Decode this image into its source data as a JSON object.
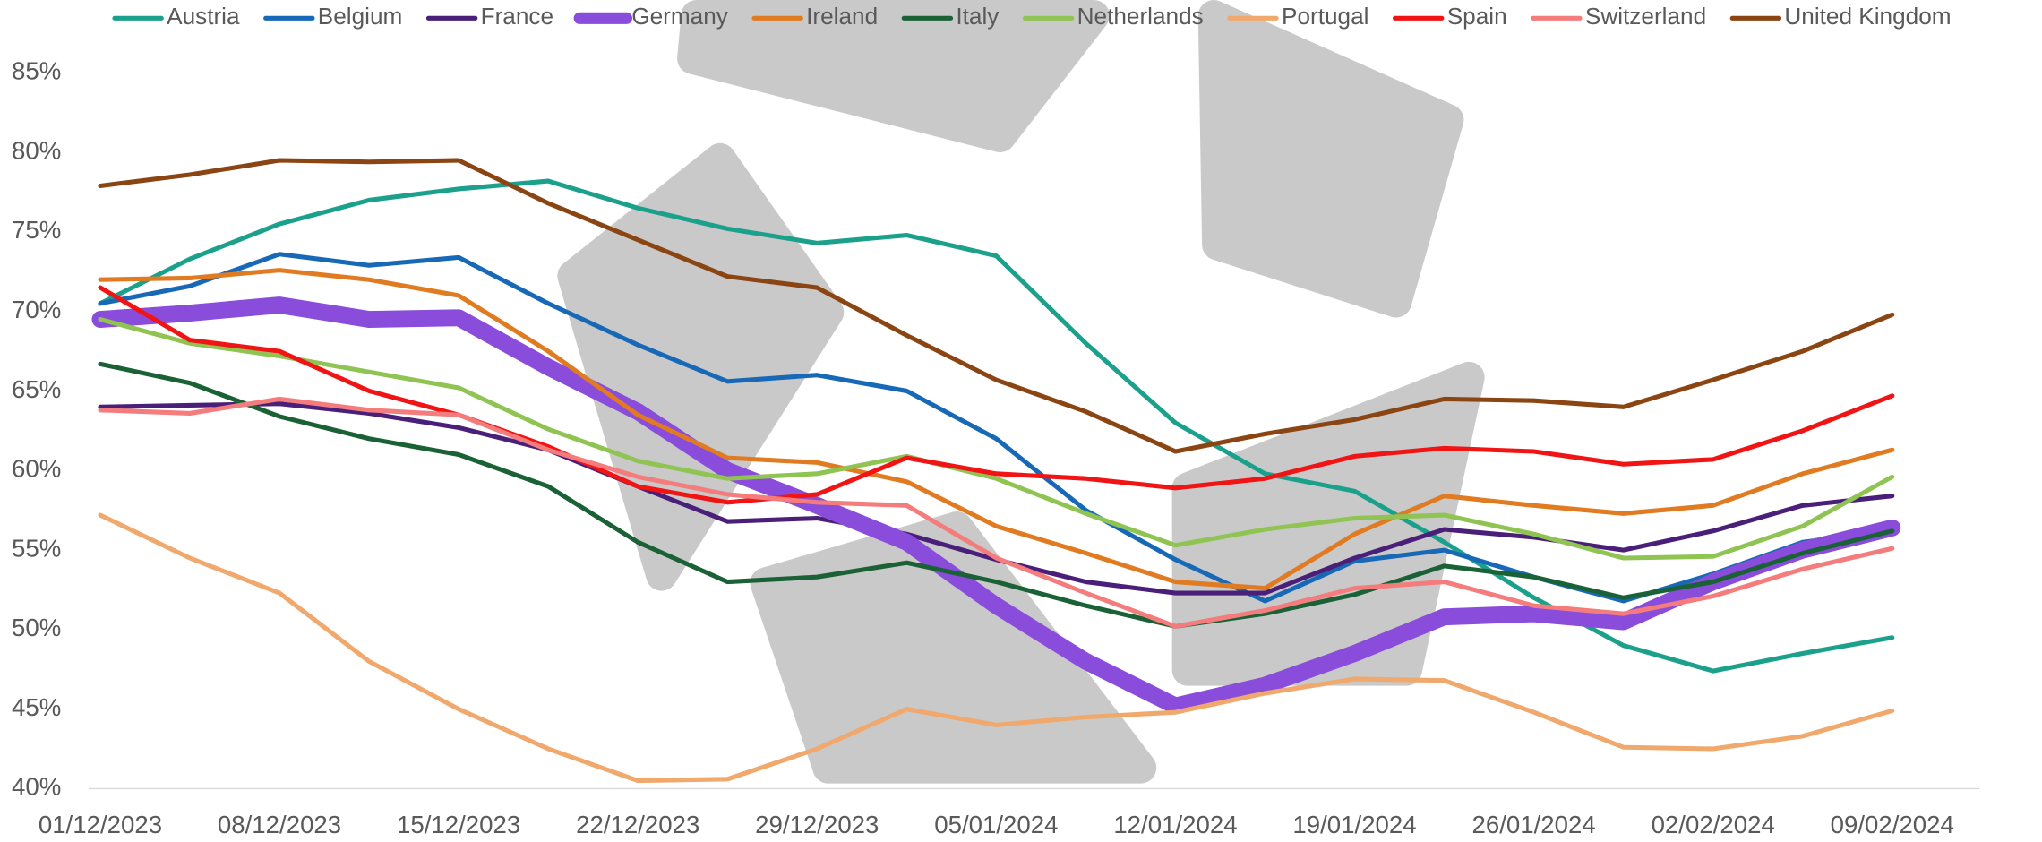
{
  "chart_data": {
    "type": "line",
    "categories": [
      "01/12/2023",
      null,
      "08/12/2023",
      null,
      "15/12/2023",
      null,
      "22/12/2023",
      null,
      "29/12/2023",
      null,
      "05/01/2024",
      null,
      "12/01/2024",
      null,
      "19/01/2024",
      null,
      "26/01/2024",
      null,
      "02/02/2024",
      null,
      "09/02/2024"
    ],
    "ylim": [
      40,
      85
    ],
    "yticks": [
      {
        "value": 40,
        "label": "40%"
      },
      {
        "value": 45,
        "label": "45%"
      },
      {
        "value": 50,
        "label": "50%"
      },
      {
        "value": 55,
        "label": "55%"
      },
      {
        "value": 60,
        "label": "60%"
      },
      {
        "value": 65,
        "label": "65%"
      },
      {
        "value": 70,
        "label": "70%"
      },
      {
        "value": 75,
        "label": "75%"
      },
      {
        "value": 80,
        "label": "80%"
      },
      {
        "value": 85,
        "label": "85%"
      }
    ],
    "grid": false,
    "legend": "top",
    "series": [
      {
        "name": "Austria",
        "color": "#1ba18b",
        "values": [
          70.5,
          73.3,
          75.5,
          77,
          77.7,
          78.2,
          76.5,
          75.2,
          74.3,
          74.8,
          73.5,
          68,
          63,
          59.8,
          58.7,
          55.5,
          52,
          49,
          47.4,
          48.5,
          49.5
        ]
      },
      {
        "name": "Belgium",
        "color": "#1769b8",
        "values": [
          70.5,
          71.6,
          73.6,
          72.9,
          73.4,
          70.5,
          67.9,
          65.6,
          66,
          65,
          62,
          57.5,
          54.4,
          51.8,
          54.3,
          55,
          53.3,
          51.8,
          53.5,
          55.5,
          56.2
        ]
      },
      {
        "name": "France",
        "color": "#4a1f7a",
        "values": [
          64,
          64.1,
          64.2,
          63.6,
          62.7,
          61.3,
          59,
          56.8,
          57,
          56,
          54.4,
          53,
          52.3,
          52.3,
          54.5,
          56.3,
          55.8,
          55,
          56.2,
          57.8,
          58.4
        ]
      },
      {
        "name": "Germany",
        "color": "#8a4cdb",
        "values": [
          69.5,
          69.9,
          70.4,
          69.5,
          69.6,
          66.5,
          63.7,
          60,
          57.8,
          55.5,
          51.5,
          48,
          45.2,
          46.5,
          48.5,
          50.8,
          51,
          50.5,
          53,
          55,
          56.4
        ]
      },
      {
        "name": "Ireland",
        "color": "#e07b22",
        "values": [
          72,
          72.1,
          72.6,
          72,
          71,
          67.5,
          63.5,
          60.8,
          60.5,
          59.3,
          56.5,
          54.8,
          53,
          52.6,
          56,
          58.4,
          57.8,
          57.3,
          57.8,
          59.8,
          61.3
        ]
      },
      {
        "name": "Italy",
        "color": "#1a6136",
        "values": [
          66.7,
          65.5,
          63.4,
          62,
          61,
          59,
          55.5,
          53,
          53.3,
          54.2,
          53,
          51.5,
          50.2,
          51,
          52.2,
          54,
          53.3,
          52,
          53,
          54.8,
          56.2
        ]
      },
      {
        "name": "Netherlands",
        "color": "#8fc452",
        "values": [
          69.5,
          68,
          67.2,
          66.2,
          65.2,
          62.6,
          60.6,
          59.5,
          59.8,
          60.9,
          59.5,
          57.3,
          55.3,
          56.3,
          57,
          57.2,
          56,
          54.5,
          54.6,
          56.5,
          59.6
        ]
      },
      {
        "name": "Portugal",
        "color": "#f0a86c",
        "values": [
          57.2,
          54.5,
          52.3,
          48,
          45,
          42.5,
          40.5,
          40.6,
          42.5,
          45,
          44,
          44.5,
          44.8,
          46,
          46.9,
          46.8,
          44.8,
          42.6,
          42.5,
          43.3,
          44.9
        ]
      },
      {
        "name": "Spain",
        "color": "#f01414",
        "values": [
          71.5,
          68.2,
          67.5,
          65,
          63.5,
          61.5,
          59,
          58,
          58.5,
          60.8,
          59.8,
          59.5,
          58.9,
          59.5,
          60.9,
          61.4,
          61.2,
          60.4,
          60.7,
          62.5,
          64.7
        ]
      },
      {
        "name": "Switzerland",
        "color": "#f47c7c",
        "values": [
          63.8,
          63.6,
          64.5,
          63.8,
          63.5,
          61.3,
          59.6,
          58.5,
          58,
          57.8,
          54.5,
          52.3,
          50.2,
          51.2,
          52.6,
          53,
          51.5,
          51,
          52.1,
          53.8,
          55.1
        ]
      },
      {
        "name": "United Kingdom",
        "color": "#8b4513",
        "values": [
          77.9,
          78.6,
          79.5,
          79.4,
          79.5,
          76.8,
          74.5,
          72.2,
          71.5,
          68.5,
          65.7,
          63.7,
          61.2,
          62.3,
          63.2,
          64.5,
          64.4,
          64,
          65.7,
          67.5,
          69.8
        ]
      }
    ]
  }
}
